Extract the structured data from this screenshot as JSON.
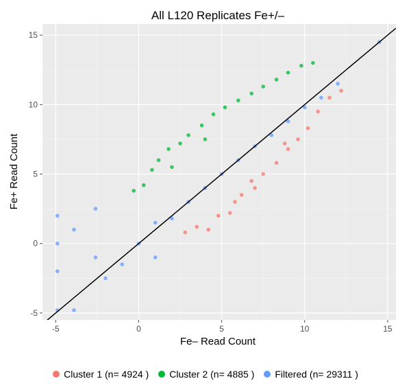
{
  "chart_data": {
    "type": "scatter",
    "title": "All L120 Replicates Fe+/–",
    "xlabel": "Fe– Read Count",
    "ylabel": "Fe+ Read Count",
    "xlim": [
      -5.8,
      15.5
    ],
    "ylim": [
      -5.5,
      15.8
    ],
    "x_ticks": [
      -5,
      0,
      5,
      10,
      15
    ],
    "y_ticks": [
      -5,
      0,
      5,
      10,
      15
    ],
    "grid": true,
    "legend_position": "bottom",
    "reference_line": {
      "x": [
        -5.8,
        15.5
      ],
      "y": [
        -5.8,
        15.5
      ]
    },
    "series": [
      {
        "name": "Cluster 1",
        "legend_label": "Cluster 1 (n= 4924 )",
        "count": 4924,
        "color": "#f8766d",
        "representative_points": [
          [
            2.8,
            0.8
          ],
          [
            3.5,
            1.2
          ],
          [
            4.2,
            1.0
          ],
          [
            4.8,
            2.0
          ],
          [
            5.5,
            2.2
          ],
          [
            6.2,
            3.5
          ],
          [
            7.0,
            4.0
          ],
          [
            7.5,
            5.0
          ],
          [
            8.3,
            5.8
          ],
          [
            9.0,
            6.8
          ],
          [
            9.6,
            7.5
          ],
          [
            10.2,
            8.3
          ],
          [
            10.8,
            9.5
          ],
          [
            11.5,
            10.5
          ],
          [
            12.2,
            11.0
          ],
          [
            5.8,
            3.0
          ],
          [
            6.8,
            4.5
          ],
          [
            8.8,
            7.2
          ]
        ]
      },
      {
        "name": "Cluster 2",
        "legend_label": "Cluster 2 (n= 4885 )",
        "count": 4885,
        "color": "#00ba38",
        "representative_points": [
          [
            -0.3,
            3.8
          ],
          [
            0.3,
            4.2
          ],
          [
            0.8,
            5.3
          ],
          [
            1.2,
            6.0
          ],
          [
            1.8,
            6.8
          ],
          [
            2.5,
            7.2
          ],
          [
            3.0,
            7.8
          ],
          [
            3.8,
            8.5
          ],
          [
            4.5,
            9.3
          ],
          [
            5.2,
            9.8
          ],
          [
            6.0,
            10.3
          ],
          [
            6.8,
            10.8
          ],
          [
            7.5,
            11.3
          ],
          [
            8.3,
            11.8
          ],
          [
            9.0,
            12.3
          ],
          [
            9.8,
            12.8
          ],
          [
            10.5,
            13.0
          ],
          [
            2.0,
            5.5
          ],
          [
            4.0,
            7.5
          ]
        ]
      },
      {
        "name": "Filtered",
        "legend_label": "Filtered (n= 29311 )",
        "count": 29311,
        "color": "#619cff",
        "representative_points": [
          [
            -4.9,
            2.0
          ],
          [
            -4.9,
            0.0
          ],
          [
            -4.9,
            -2.0
          ],
          [
            -4.9,
            -4.8
          ],
          [
            -3.9,
            1.0
          ],
          [
            -3.9,
            -4.8
          ],
          [
            -2.6,
            2.5
          ],
          [
            -2.6,
            -1.0
          ],
          [
            -2.0,
            -2.5
          ],
          [
            -1.0,
            -1.5
          ],
          [
            0.0,
            0.0
          ],
          [
            1.0,
            -1.0
          ],
          [
            1.0,
            1.5
          ],
          [
            2.0,
            1.8
          ],
          [
            3.0,
            3.0
          ],
          [
            4.0,
            4.0
          ],
          [
            5.0,
            5.0
          ],
          [
            6.0,
            6.0
          ],
          [
            7.0,
            7.0
          ],
          [
            8.0,
            7.8
          ],
          [
            9.0,
            8.8
          ],
          [
            10.0,
            9.8
          ],
          [
            11.0,
            10.5
          ],
          [
            12.0,
            11.5
          ],
          [
            14.5,
            14.5
          ]
        ]
      }
    ]
  }
}
